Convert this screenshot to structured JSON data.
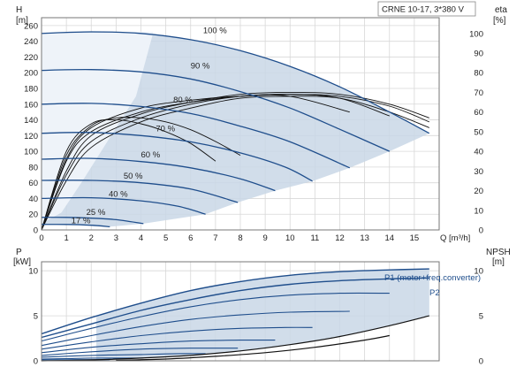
{
  "chart_data": [
    {
      "type": "line",
      "title": "CRNE 10-17, 3*380 V",
      "xlabel": "Q [m³/h]",
      "ylabel_left_unit": "H",
      "ylabel_left_dim": "[m]",
      "ylabel_right_unit": "eta",
      "ylabel_right_dim": "[%]",
      "xlim": [
        0,
        16
      ],
      "ylim": [
        0,
        270
      ],
      "ylim_right": [
        0,
        108
      ],
      "x_ticks": [
        0,
        1,
        2,
        3,
        4,
        5,
        6,
        7,
        8,
        9,
        10,
        11,
        12,
        13,
        14,
        15
      ],
      "y_ticks": [
        0,
        20,
        40,
        60,
        80,
        100,
        120,
        140,
        160,
        180,
        200,
        220,
        240,
        260
      ],
      "y_right_ticks": [
        0,
        10,
        20,
        30,
        40,
        50,
        60,
        70,
        80,
        90,
        100
      ],
      "grid": true,
      "series": [
        {
          "name": "100 %",
          "label_at": [
            6.5,
            248
          ],
          "x": [
            0,
            2,
            4,
            6,
            8,
            10,
            12,
            14,
            15.6
          ],
          "y": [
            250,
            252,
            250,
            242,
            228,
            208,
            182,
            150,
            123
          ]
        },
        {
          "name": "90 %",
          "label_at": [
            6.0,
            203
          ],
          "x": [
            0,
            2,
            4,
            6,
            8,
            10,
            12,
            14.0
          ],
          "y": [
            203,
            204,
            201,
            192,
            176,
            155,
            128,
            100
          ]
        },
        {
          "name": "80 %",
          "label_at": [
            5.3,
            160
          ],
          "x": [
            0,
            2,
            4,
            6,
            8,
            10,
            12.4
          ],
          "y": [
            160,
            161,
            157,
            148,
            132,
            112,
            79
          ]
        },
        {
          "name": "70 %",
          "label_at": [
            4.6,
            123
          ],
          "x": [
            0,
            2,
            4,
            6,
            8,
            9.8,
            10.9
          ],
          "y": [
            123,
            124,
            120,
            112,
            98,
            80,
            62
          ]
        },
        {
          "name": "60 %",
          "label_at": [
            4.0,
            90
          ],
          "x": [
            0,
            2,
            4,
            6,
            8,
            9.4
          ],
          "y": [
            90,
            91,
            87,
            79,
            65,
            50
          ]
        },
        {
          "name": "50 %",
          "label_at": [
            3.3,
            63
          ],
          "x": [
            0,
            2,
            4,
            6,
            7.9
          ],
          "y": [
            63,
            63,
            60,
            52,
            35
          ]
        },
        {
          "name": "40 %",
          "label_at": [
            2.7,
            40
          ],
          "x": [
            0,
            2,
            4,
            5.5,
            6.6
          ],
          "y": [
            40,
            41,
            37,
            30,
            20
          ]
        },
        {
          "name": "25 %",
          "label_at": [
            1.8,
            17
          ],
          "x": [
            0,
            1,
            2,
            3,
            4.1
          ],
          "y": [
            16,
            16,
            15,
            13,
            8
          ]
        },
        {
          "name": "17 %",
          "label_at": [
            1.2,
            6
          ],
          "x": [
            0,
            1,
            2,
            2.75
          ],
          "y": [
            7,
            7,
            6,
            4
          ]
        }
      ],
      "efficiency_series_percent": [
        {
          "x": [
            0,
            1,
            2,
            4,
            6,
            8,
            10,
            12,
            14,
            15.6
          ],
          "y": [
            0,
            30,
            48,
            59,
            65,
            69,
            70,
            69,
            64,
            57
          ]
        },
        {
          "x": [
            0,
            1,
            2,
            4,
            6,
            8,
            10,
            12,
            14,
            15.6
          ],
          "y": [
            0,
            28,
            45,
            57,
            64,
            68,
            69,
            68,
            63,
            55
          ]
        },
        {
          "x": [
            0,
            1,
            2,
            4,
            6,
            8,
            10,
            12,
            14,
            15.6
          ],
          "y": [
            0,
            25,
            42,
            55,
            62,
            67,
            68,
            67,
            60,
            52
          ]
        },
        {
          "x": [
            0,
            1,
            2,
            4,
            6,
            8,
            10,
            12,
            14.0
          ],
          "y": [
            0,
            35,
            50,
            60,
            65,
            68,
            69,
            67,
            58
          ]
        },
        {
          "x": [
            0,
            1,
            2,
            4,
            6,
            8,
            10,
            12.4
          ],
          "y": [
            0,
            36,
            52,
            62,
            66,
            68,
            68,
            60
          ]
        },
        {
          "x": [
            0,
            1,
            2,
            3,
            4,
            5,
            6,
            7
          ],
          "y": [
            0,
            40,
            54,
            56,
            54,
            50,
            44,
            35
          ]
        },
        {
          "x": [
            0,
            1,
            2,
            3,
            4,
            5,
            6,
            7,
            8
          ],
          "y": [
            0,
            38,
            53,
            57,
            57,
            55,
            51,
            45,
            38
          ]
        }
      ]
    },
    {
      "type": "line",
      "xlabel": "",
      "ylabel_left_unit": "P",
      "ylabel_left_dim": "[kW]",
      "ylabel_right_unit": "NPSH",
      "ylabel_right_dim": "[m]",
      "xlim": [
        0,
        16
      ],
      "ylim": [
        0,
        11
      ],
      "y_ticks": [
        0,
        5,
        10
      ],
      "y_right_ticks": [
        0,
        5,
        10
      ],
      "grid": true,
      "series": [
        {
          "name": "P1 (motor+freq.converter)",
          "x": [
            0,
            2,
            4,
            6,
            8,
            10,
            12,
            14,
            15.6
          ],
          "y": [
            3.0,
            4.8,
            6.4,
            7.8,
            8.8,
            9.5,
            9.9,
            10.1,
            10.2
          ]
        },
        {
          "name": "P2",
          "x": [
            0,
            2,
            4,
            6,
            8,
            10,
            12,
            14,
            15.6
          ],
          "y": [
            2.6,
            4.1,
            5.6,
            6.8,
            7.8,
            8.5,
            8.9,
            9.1,
            9.2
          ]
        }
      ],
      "power_series_other": [
        {
          "x": [
            0,
            2,
            4,
            6,
            8,
            10,
            12,
            14.0
          ],
          "y": [
            2.2,
            3.6,
            4.9,
            6.0,
            6.8,
            7.3,
            7.5,
            7.5
          ]
        },
        {
          "x": [
            0,
            2,
            4,
            6,
            8,
            10,
            12.4
          ],
          "y": [
            1.7,
            2.8,
            3.8,
            4.6,
            5.1,
            5.4,
            5.5
          ]
        },
        {
          "x": [
            0,
            2,
            4,
            6,
            8,
            9.8,
            10.9
          ],
          "y": [
            1.3,
            2.1,
            2.8,
            3.3,
            3.6,
            3.7,
            3.7
          ]
        },
        {
          "x": [
            0,
            2,
            4,
            6,
            8,
            9.4
          ],
          "y": [
            0.9,
            1.5,
            1.9,
            2.2,
            2.3,
            2.3
          ]
        },
        {
          "x": [
            0,
            2,
            4,
            6,
            7.9
          ],
          "y": [
            0.6,
            1.0,
            1.3,
            1.4,
            1.4
          ]
        },
        {
          "x": [
            0,
            2,
            4,
            5.5,
            6.6
          ],
          "y": [
            0.4,
            0.6,
            0.7,
            0.8,
            0.8
          ]
        },
        {
          "x": [
            0,
            1,
            2,
            3,
            4.1
          ],
          "y": [
            0.2,
            0.25,
            0.3,
            0.3,
            0.3
          ]
        },
        {
          "x": [
            0,
            1,
            2,
            2.75
          ],
          "y": [
            0.1,
            0.12,
            0.13,
            0.13
          ]
        }
      ],
      "npsh_series": [
        {
          "x": [
            0,
            2,
            4,
            6,
            8,
            10,
            12,
            14,
            15.6
          ],
          "y": [
            0,
            0.1,
            0.3,
            0.6,
            1.1,
            1.8,
            2.7,
            3.9,
            5.0
          ]
        },
        {
          "x": [
            3,
            5,
            7,
            9,
            11,
            13,
            14.0
          ],
          "y": [
            0.05,
            0.2,
            0.5,
            0.9,
            1.5,
            2.3,
            2.8
          ]
        }
      ]
    }
  ]
}
